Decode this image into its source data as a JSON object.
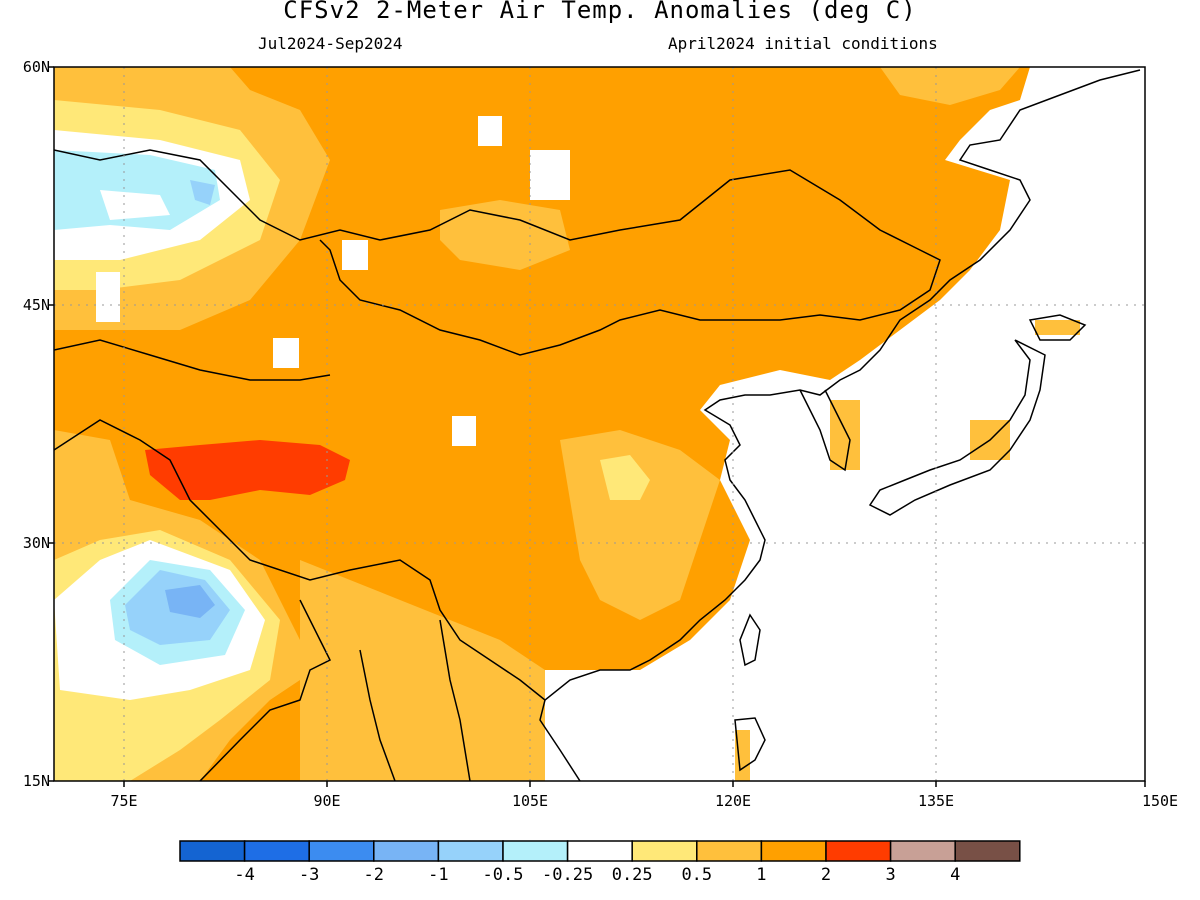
{
  "header": {
    "title": "CFSv2 2-Meter Air Temp. Anomalies (deg C)",
    "period": "Jul2024-Sep2024",
    "initial_conditions": "April2024 initial conditions"
  },
  "map": {
    "lon_range": [
      70,
      150
    ],
    "lat_range": [
      15,
      60
    ],
    "lat_labels": [
      "60N",
      "45N",
      "30N",
      "15N"
    ],
    "lon_labels": [
      "75E",
      "90E",
      "105E",
      "120E",
      "135E",
      "150E"
    ],
    "gridlines": "dotted"
  },
  "colorbar": {
    "colors": [
      "#1464d2",
      "#1e6ee6",
      "#3c8cf0",
      "#78b4f5",
      "#96d2fa",
      "#b4f0fa",
      "#ffffff",
      "#ffe878",
      "#ffc03c",
      "#ffa000",
      "#ff3c00",
      "#c8a096",
      "#785046"
    ],
    "labels": [
      "-4",
      "-3",
      "-2",
      "-1",
      "-0.5",
      "-0.25",
      "0.25",
      "0.5",
      "1",
      "2",
      "3",
      "4"
    ]
  }
}
